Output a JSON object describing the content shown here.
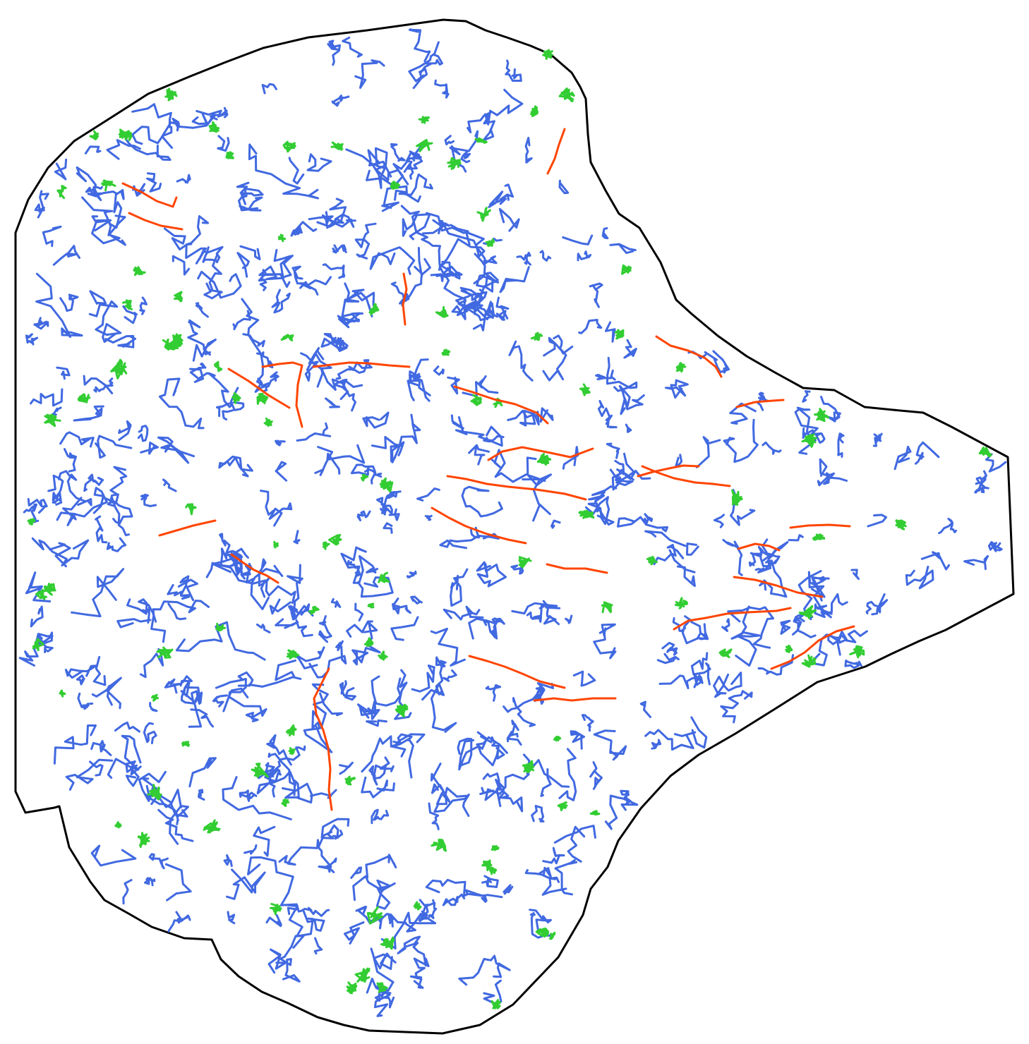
{
  "colors": {
    "background": "#ffffff",
    "boundary": "#000000",
    "diffusive": "#4169e1",
    "confined": "#32cd32",
    "directed": "#ff4500"
  },
  "track_classes": [
    "diffusive",
    "confined",
    "directed"
  ]
}
